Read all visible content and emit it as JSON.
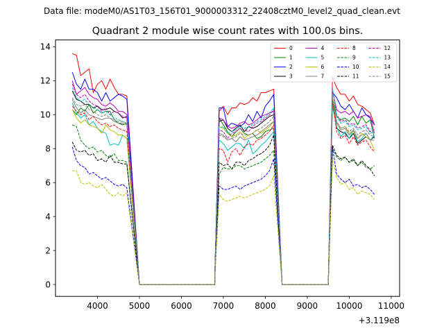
{
  "suptitle": "Data file: modeM0/AS1T03_156T01_9000003312_22408cztM0_level2_quad_clean.evt",
  "chart_data": {
    "type": "line",
    "title": "Quadrant 2 module wise count rates with 100.0s bins.",
    "xlabel": "",
    "ylabel": "",
    "x_offset_label": "+3.119e8",
    "xlim": [
      3000,
      11200
    ],
    "ylim": [
      -0.7,
      14.4
    ],
    "xticks": [
      4000,
      5000,
      6000,
      7000,
      8000,
      9000,
      10000,
      11000
    ],
    "xtick_labels": [
      "4000",
      "5000",
      "6000",
      "7000",
      "8000",
      "9000",
      "10000",
      "11000"
    ],
    "yticks": [
      0,
      2,
      4,
      6,
      8,
      10,
      12,
      14
    ],
    "ytick_labels": [
      "0",
      "2",
      "4",
      "6",
      "8",
      "10",
      "12",
      "14"
    ],
    "segments": [
      {
        "start": 3400,
        "n": 14
      },
      {
        "start": 6800,
        "n": 15
      },
      {
        "start": 9600,
        "n": 11
      }
    ],
    "gaps": [
      {
        "from": 4800,
        "to": 5000,
        "zero_end": 6800
      },
      {
        "from": 8200,
        "to": 8400,
        "zero_end": 9500
      }
    ],
    "legend_position": "top-right",
    "series": [
      {
        "name": "0",
        "color": "#ff0000",
        "dash": false,
        "levels": [
          13.3,
          10.3,
          10.5
        ],
        "values": [
          [
            13.6,
            13.5,
            12.3,
            12.5,
            12.7,
            11.3,
            11.8,
            12.0,
            11.5,
            12.1,
            11.6,
            11.2,
            11.2,
            11.1
          ],
          [
            0.9,
            10.2,
            10.5,
            10.0,
            10.4,
            10.4,
            10.7,
            10.6,
            10.7,
            11.0,
            10.8,
            11.3,
            11.3,
            11.4,
            11.5
          ],
          [
            12.2,
            11.6,
            11.2,
            11.2,
            10.8,
            11.1,
            10.6,
            10.5,
            10.3,
            10.1,
            9.4
          ]
        ]
      },
      {
        "name": "1",
        "color": "#008000",
        "dash": false,
        "levels": [
          10.4,
          8.7,
          9.1
        ],
        "values": [
          [
            10.3,
            10.0,
            10.4,
            10.2,
            10.6,
            10.1,
            10.3,
            10.1,
            10.2,
            10.2,
            9.7,
            9.5,
            9.4,
            9.5
          ],
          [
            1.0,
            9.8,
            9.4,
            9.0,
            8.7,
            9.0,
            9.2,
            8.9,
            8.8,
            8.9,
            8.6,
            8.7,
            9.0,
            9.1,
            9.2
          ],
          [
            11.0,
            9.9,
            9.7,
            9.8,
            9.6,
            9.9,
            9.4,
            9.9,
            9.5,
            9.7,
            8.6
          ]
        ]
      },
      {
        "name": "2",
        "color": "#0000ff",
        "dash": false,
        "levels": [
          12.3,
          10.3,
          10.8
        ],
        "values": [
          [
            12.5,
            11.8,
            11.5,
            12.1,
            11.5,
            11.5,
            11.3,
            10.8,
            11.3,
            10.8,
            11.0,
            11.2,
            11.1,
            10.9
          ],
          [
            0.9,
            10.4,
            10.4,
            9.3,
            9.5,
            9.4,
            9.3,
            9.5,
            10.0,
            9.6,
            10.2,
            9.8,
            10.5,
            10.8,
            11.2
          ],
          [
            11.3,
            11.0,
            10.5,
            10.3,
            10.6,
            10.2,
            9.8,
            10.4,
            10.0,
            9.8,
            9.4
          ]
        ]
      },
      {
        "name": "3",
        "color": "#000000",
        "dash": false,
        "levels": [
          10.9,
          8.7,
          8.8
        ],
        "values": [
          [
            11.4,
            10.9,
            10.8,
            10.6,
            10.6,
            10.4,
            10.5,
            10.3,
            10.3,
            10.4,
            10.2,
            10.1,
            9.8,
            9.9
          ],
          [
            0.9,
            9.6,
            9.7,
            9.2,
            9.0,
            9.2,
            9.4,
            9.0,
            9.3,
            9.2,
            9.3,
            9.5,
            9.7,
            9.9,
            10.0
          ],
          [
            10.8,
            9.2,
            9.0,
            8.9,
            8.6,
            8.9,
            8.3,
            8.5,
            8.7,
            8.5,
            8.7
          ]
        ]
      },
      {
        "name": "4",
        "color": "#bf00bf",
        "dash": false,
        "levels": [
          12.0,
          9.6,
          10.2
        ],
        "values": [
          [
            12.0,
            11.2,
            11.4,
            11.6,
            11.2,
            11.0,
            10.9,
            10.6,
            10.5,
            10.7,
            10.5,
            10.2,
            10.2,
            10.0
          ],
          [
            0.9,
            9.8,
            9.7,
            9.3,
            9.2,
            9.3,
            9.5,
            9.6,
            9.4,
            9.5,
            9.7,
            9.9,
            10.0,
            10.1,
            10.2
          ],
          [
            11.4,
            10.3,
            10.1,
            10.2,
            10.0,
            10.2,
            9.8,
            9.9,
            10.0,
            9.9,
            8.9
          ]
        ]
      },
      {
        "name": "5",
        "color": "#00bfbf",
        "dash": false,
        "levels": [
          10.3,
          8.2,
          8.7
        ],
        "values": [
          [
            10.7,
            10.1,
            9.8,
            10.0,
            9.4,
            9.6,
            9.2,
            9.0,
            8.9,
            8.2,
            8.3,
            8.2,
            8.8,
            8.6
          ],
          [
            0.8,
            8.5,
            8.3,
            7.9,
            8.1,
            8.3,
            8.3,
            8.0,
            8.5,
            7.7,
            7.9,
            8.2,
            8.4,
            8.7,
            9.0
          ],
          [
            10.5,
            9.3,
            8.7,
            9.0,
            8.6,
            9.1,
            8.4,
            8.6,
            8.9,
            8.5,
            8.8
          ]
        ]
      },
      {
        "name": "6",
        "color": "#bfbf00",
        "dash": false,
        "levels": [
          10.0,
          8.8,
          9.0
        ],
        "values": [
          [
            10.3,
            9.8,
            9.5,
            9.7,
            9.4,
            9.3,
            9.2,
            8.9,
            9.4,
            9.1,
            9.0,
            8.8,
            8.8,
            8.6
          ],
          [
            0.8,
            9.3,
            9.2,
            8.9,
            8.7,
            8.8,
            9.0,
            8.6,
            8.8,
            8.9,
            9.1,
            8.9,
            9.1,
            9.3,
            9.6
          ],
          [
            11.0,
            9.6,
            9.2,
            9.3,
            8.9,
            9.0,
            8.6,
            8.9,
            8.7,
            8.5,
            7.9
          ]
        ]
      },
      {
        "name": "7",
        "color": "#808080",
        "dash": false,
        "levels": [
          10.6,
          8.6,
          9.0
        ],
        "values": [
          [
            10.9,
            10.4,
            10.1,
            10.3,
            10.0,
            9.9,
            9.8,
            9.7,
            9.8,
            9.8,
            9.6,
            9.5,
            9.5,
            9.4
          ],
          [
            0.9,
            8.9,
            8.8,
            8.5,
            8.6,
            8.4,
            8.7,
            8.5,
            8.6,
            8.7,
            8.8,
            9.0,
            9.2,
            9.4,
            9.6
          ],
          [
            10.6,
            9.5,
            9.1,
            9.2,
            8.8,
            9.1,
            8.6,
            8.8,
            8.9,
            8.5,
            8.5
          ]
        ]
      },
      {
        "name": "8",
        "color": "#ff0000",
        "dash": true,
        "levels": [
          10.3,
          8.2,
          8.5
        ],
        "values": [
          [
            10.5,
            10.2,
            10.0,
            10.1,
            9.7,
            9.9,
            9.6,
            9.4,
            9.5,
            9.3,
            9.4,
            9.2,
            9.1,
            9.0
          ],
          [
            0.7,
            8.0,
            7.9,
            7.2,
            7.8,
            8.0,
            7.6,
            8.1,
            8.3,
            8.2,
            8.5,
            8.6,
            8.8,
            9.0,
            9.4
          ],
          [
            10.9,
            9.0,
            8.6,
            8.8,
            8.3,
            8.7,
            8.2,
            8.4,
            8.5,
            8.1,
            7.8
          ]
        ]
      },
      {
        "name": "9",
        "color": "#008000",
        "dash": true,
        "levels": [
          8.6,
          7.0,
          7.4
        ],
        "values": [
          [
            9.4,
            9.3,
            8.5,
            8.2,
            8.0,
            8.1,
            7.8,
            7.9,
            7.6,
            7.5,
            7.7,
            7.3,
            7.3,
            7.2
          ],
          [
            0.6,
            6.5,
            6.9,
            6.8,
            6.8,
            7.0,
            7.0,
            6.8,
            6.9,
            7.0,
            7.1,
            7.2,
            7.4,
            7.6,
            7.9
          ],
          [
            8.0,
            7.5,
            7.3,
            7.5,
            7.2,
            7.3,
            7.0,
            7.2,
            6.9,
            6.8,
            7.0
          ]
        ]
      },
      {
        "name": "10",
        "color": "#0000ff",
        "dash": true,
        "levels": [
          7.0,
          5.7,
          6.0
        ],
        "values": [
          [
            8.1,
            7.3,
            7.0,
            6.9,
            6.5,
            6.6,
            6.4,
            6.2,
            6.3,
            6.1,
            5.9,
            5.8,
            5.9,
            5.7
          ],
          [
            0.5,
            5.8,
            5.6,
            5.6,
            5.7,
            5.8,
            5.6,
            5.8,
            5.9,
            6.0,
            6.1,
            6.2,
            6.4,
            6.7,
            7.4
          ],
          [
            8.1,
            6.5,
            6.2,
            6.0,
            6.2,
            5.8,
            5.9,
            5.7,
            5.8,
            5.6,
            5.3
          ]
        ]
      },
      {
        "name": "11",
        "color": "#000000",
        "dash": true,
        "levels": [
          8.0,
          7.0,
          7.3
        ],
        "values": [
          [
            8.4,
            7.9,
            7.8,
            7.9,
            7.6,
            7.7,
            7.3,
            7.4,
            7.2,
            7.6,
            7.2,
            7.2,
            7.1,
            7.1
          ],
          [
            0.6,
            7.2,
            7.0,
            7.1,
            6.8,
            7.2,
            7.2,
            7.0,
            7.3,
            7.4,
            7.6,
            7.7,
            7.9,
            8.2,
            8.8
          ],
          [
            8.2,
            7.6,
            7.4,
            7.5,
            7.2,
            7.4,
            7.0,
            7.3,
            7.0,
            6.8,
            6.4
          ]
        ]
      },
      {
        "name": "12",
        "color": "#bf00bf",
        "dash": true,
        "levels": [
          11.7,
          9.3,
          9.6
        ],
        "values": [
          [
            11.8,
            11.2,
            11.0,
            11.2,
            10.8,
            10.6,
            10.5,
            10.2,
            10.4,
            10.0,
            10.2,
            10.1,
            9.9,
            9.8
          ],
          [
            0.8,
            9.1,
            9.0,
            8.6,
            8.9,
            9.0,
            9.2,
            9.1,
            9.0,
            9.3,
            9.5,
            9.6,
            9.8,
            10.0,
            10.3
          ],
          [
            11.5,
            10.0,
            9.6,
            9.7,
            9.4,
            9.5,
            9.2,
            9.3,
            9.4,
            9.0,
            9.1
          ]
        ]
      },
      {
        "name": "13",
        "color": "#00bfbf",
        "dash": true,
        "levels": [
          11.3,
          9.4,
          9.6
        ],
        "values": [
          [
            11.6,
            11.0,
            10.8,
            10.9,
            10.6,
            10.4,
            10.3,
            10.1,
            10.2,
            10.0,
            9.8,
            9.7,
            9.6,
            9.5
          ],
          [
            0.8,
            9.2,
            9.3,
            8.9,
            9.0,
            9.1,
            9.3,
            9.2,
            9.3,
            9.4,
            9.6,
            9.7,
            9.9,
            10.1,
            10.4
          ],
          [
            11.6,
            9.9,
            9.5,
            9.6,
            9.3,
            9.4,
            9.1,
            9.2,
            9.3,
            8.9,
            9.0
          ]
        ]
      },
      {
        "name": "14",
        "color": "#bfbf00",
        "dash": true,
        "levels": [
          6.2,
          5.1,
          5.5
        ],
        "values": [
          [
            6.7,
            6.7,
            6.0,
            5.9,
            6.0,
            5.8,
            5.7,
            5.9,
            5.6,
            5.3,
            5.2,
            5.4,
            5.2,
            5.4
          ],
          [
            0.5,
            5.3,
            5.0,
            4.9,
            5.0,
            5.1,
            5.2,
            5.1,
            5.2,
            5.3,
            5.4,
            5.5,
            5.6,
            5.8,
            6.4
          ],
          [
            7.4,
            6.3,
            5.9,
            6.0,
            5.6,
            5.7,
            5.3,
            5.5,
            5.4,
            5.3,
            5.0
          ]
        ]
      },
      {
        "name": "15",
        "color": "#808080",
        "dash": true,
        "levels": [
          10.8,
          8.9,
          9.2
        ],
        "values": [
          [
            11.0,
            10.6,
            10.5,
            10.6,
            10.3,
            10.2,
            10.0,
            9.9,
            10.0,
            9.8,
            9.7,
            9.6,
            9.6,
            9.5
          ],
          [
            0.8,
            8.8,
            8.7,
            8.5,
            8.6,
            8.7,
            8.9,
            8.8,
            8.8,
            8.9,
            9.1,
            9.2,
            9.4,
            9.6,
            9.9
          ],
          [
            10.9,
            9.6,
            9.2,
            9.3,
            9.0,
            9.2,
            8.8,
            9.0,
            9.1,
            8.8,
            8.7
          ]
        ]
      }
    ]
  }
}
